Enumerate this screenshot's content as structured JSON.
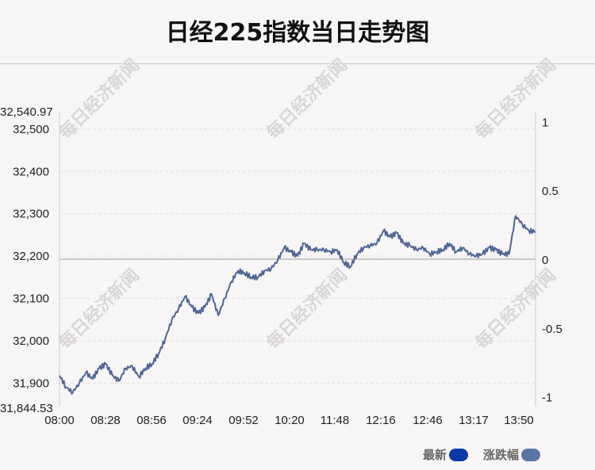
{
  "title": "日经225指数当日走势图",
  "watermark": "每日经济新闻",
  "legend": [
    {
      "label": "最新",
      "color": "#0b3aa8"
    },
    {
      "label": "涨跌幅",
      "color": "#5b74a6"
    }
  ],
  "colors": {
    "line": "#4e6596",
    "grid": "#e2dfe1",
    "axis": "#cfcfcf",
    "baseline": "#c9c9c9"
  },
  "chart_data": {
    "type": "line",
    "title": "日经225指数当日走势图",
    "series": [
      {
        "name": "最新",
        "x": [
          "08:00",
          "08:05",
          "08:10",
          "08:15",
          "08:20",
          "08:25",
          "08:30",
          "08:35",
          "08:40",
          "08:45",
          "08:50",
          "08:55",
          "09:00",
          "09:05",
          "09:10",
          "09:15",
          "09:20",
          "09:25",
          "09:30",
          "09:35",
          "09:40",
          "09:45",
          "09:50",
          "09:55",
          "10:00",
          "10:05",
          "10:10",
          "10:15",
          "10:20",
          "10:25",
          "10:30",
          "10:35",
          "10:40",
          "10:45",
          "10:50",
          "10:55",
          "11:00",
          "11:05",
          "11:10",
          "11:15",
          "11:20",
          "11:25",
          "11:30",
          "11:35",
          "11:40",
          "11:45",
          "11:50",
          "11:55",
          "12:00",
          "12:05",
          "12:10",
          "12:15",
          "12:20",
          "12:25",
          "12:30",
          "12:35",
          "12:40",
          "12:45",
          "12:50",
          "12:55",
          "13:00",
          "13:05",
          "13:10",
          "13:15",
          "13:20",
          "13:25",
          "13:30",
          "13:35",
          "13:40",
          "13:45",
          "13:50",
          "13:55",
          "14:00"
        ],
        "y": [
          31918,
          31890,
          31878,
          31900,
          31925,
          31910,
          31935,
          31945,
          31918,
          31905,
          31935,
          31940,
          31915,
          31935,
          31945,
          31970,
          32005,
          32050,
          32075,
          32105,
          32080,
          32065,
          32080,
          32110,
          32060,
          32100,
          32140,
          32165,
          32160,
          32150,
          32150,
          32165,
          32170,
          32190,
          32220,
          32210,
          32200,
          32230,
          32215,
          32215,
          32215,
          32210,
          32215,
          32185,
          32175,
          32205,
          32220,
          32225,
          32230,
          32260,
          32245,
          32255,
          32230,
          32225,
          32215,
          32220,
          32205,
          32210,
          32215,
          32230,
          32210,
          32220,
          32205,
          32200,
          32205,
          32220,
          32215,
          32205,
          32205,
          32295,
          32275,
          32260,
          32258
        ]
      }
    ],
    "y_left_ticks": [
      "32,500",
      "32,400",
      "32,300",
      "32,200",
      "32,100",
      "32,000",
      "31,900"
    ],
    "y_left_ticks_values": [
      32500,
      32400,
      32300,
      32200,
      32100,
      32000,
      31900
    ],
    "y_left_max_label": "32,540.97",
    "y_left_min_label": "31,844.53",
    "ylim": [
      31844.53,
      32540.97
    ],
    "y_right_ticks": [
      "1",
      "0.5",
      "0",
      "-0.5",
      "-1"
    ],
    "y_right_ticks_values": [
      1,
      0.5,
      0,
      -0.5,
      -1
    ],
    "y_right_lim": [
      -1.0718,
      1.0718
    ],
    "x_ticks": [
      "08:00",
      "08:28",
      "08:56",
      "09:24",
      "09:52",
      "10:20",
      "11:48",
      "12:16",
      "12:46",
      "13:17",
      "13:50"
    ],
    "reference_value": 32192.75,
    "grid": true,
    "legend_position": "bottom-right"
  }
}
